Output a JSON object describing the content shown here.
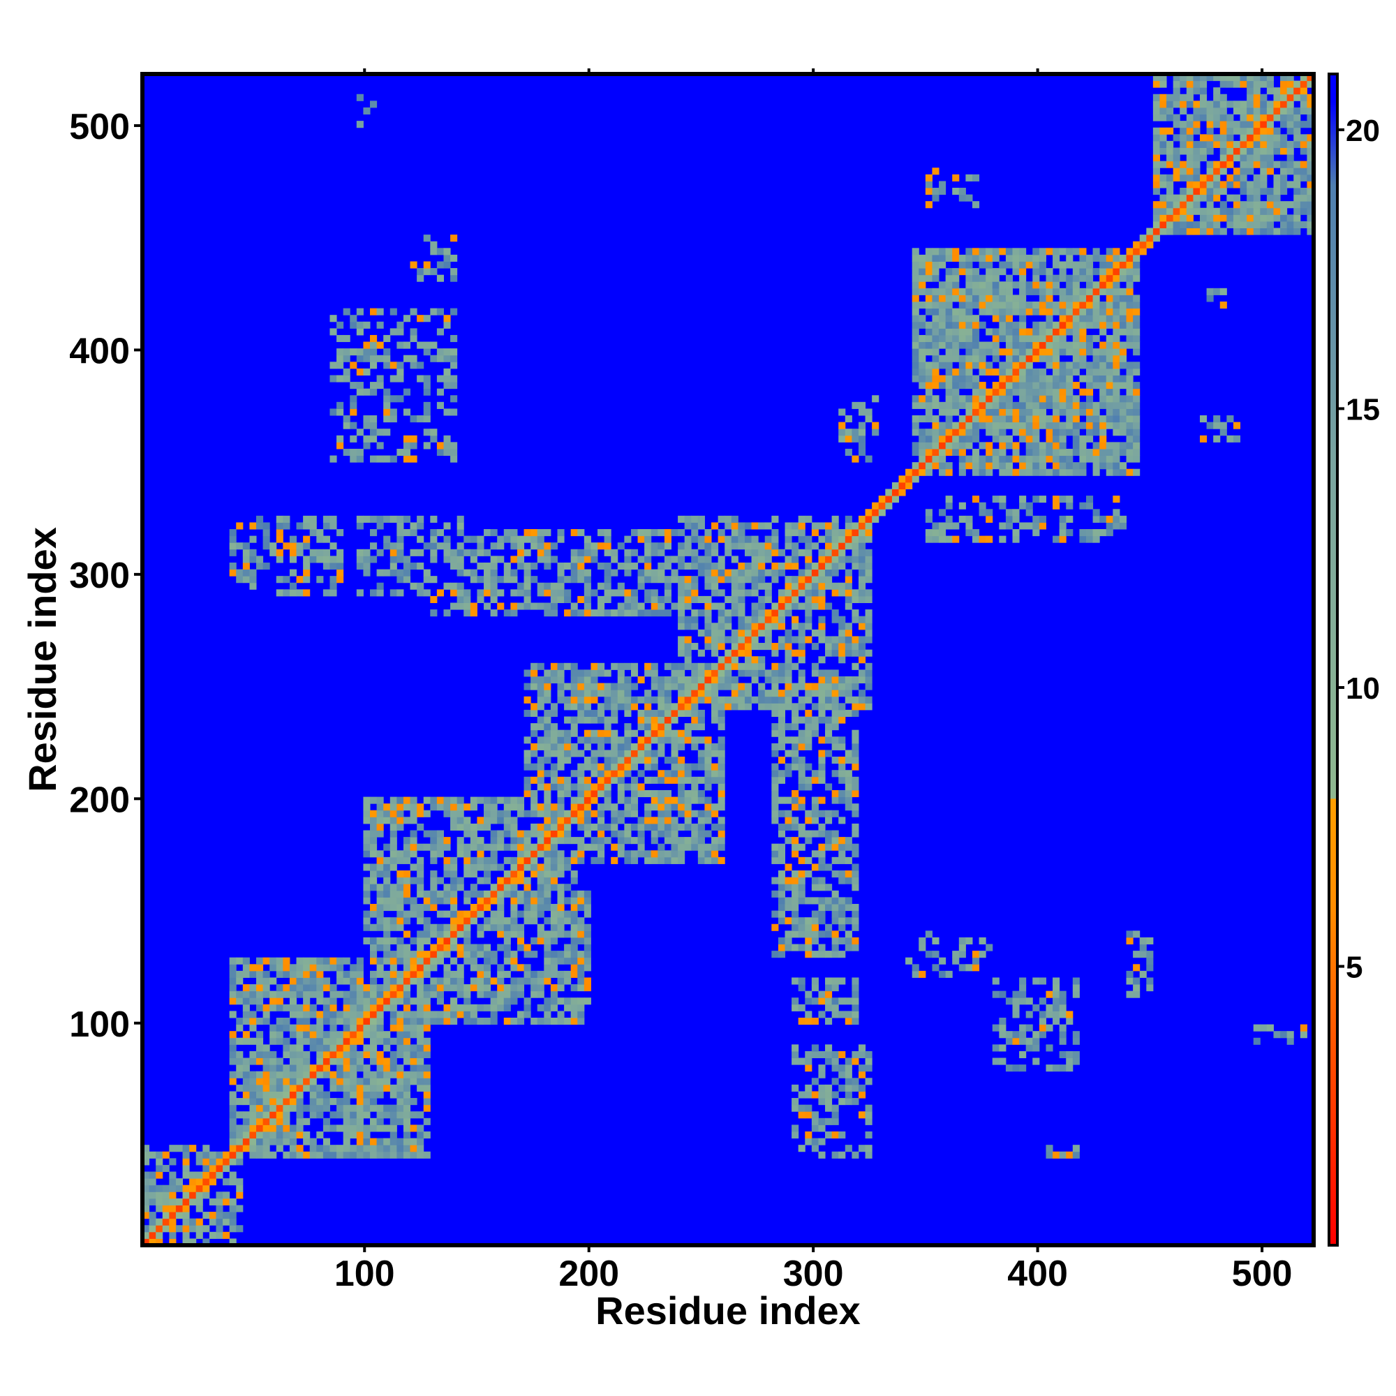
{
  "chart_data": {
    "type": "heatmap",
    "title": "",
    "xlabel": "Residue index",
    "ylabel": "Residue index",
    "xlim": [
      1,
      523
    ],
    "ylim": [
      1,
      523
    ],
    "x_ticks": [
      {
        "value": 100,
        "label": "100"
      },
      {
        "value": 200,
        "label": "200"
      },
      {
        "value": 300,
        "label": "300"
      },
      {
        "value": 400,
        "label": "400"
      },
      {
        "value": 500,
        "label": "500"
      }
    ],
    "y_ticks": [
      {
        "value": 100,
        "label": "100"
      },
      {
        "value": 200,
        "label": "200"
      },
      {
        "value": 300,
        "label": "300"
      },
      {
        "value": 400,
        "label": "400"
      },
      {
        "value": 500,
        "label": "500"
      }
    ],
    "colorbar": {
      "range": [
        0,
        21
      ],
      "ticks": [
        {
          "value": 5,
          "label": "5"
        },
        {
          "value": 10,
          "label": "10"
        },
        {
          "value": 15,
          "label": "15"
        },
        {
          "value": 20,
          "label": "20"
        }
      ],
      "stops": [
        {
          "value": 0,
          "color": "#ff0000"
        },
        {
          "value": 6,
          "color": "#ff8c00"
        },
        {
          "value": 8,
          "color": "#ff9f00"
        },
        {
          "value": 8.01,
          "color": "#8fb88f"
        },
        {
          "value": 14,
          "color": "#7aa5a0"
        },
        {
          "value": 19,
          "color": "#4f7fb0"
        },
        {
          "value": 20.5,
          "color": "#0000ff"
        }
      ]
    },
    "background_color": "#0000ff",
    "description_of_values": "Pairwise residue distance map; low distances red/orange, medium green-grey, large blue",
    "diagonal": {
      "from": 1,
      "to": 523,
      "value": 3
    },
    "contact_blocks": [
      {
        "x": [
          1,
          45
        ],
        "y": [
          1,
          45
        ],
        "intensity": 0.6
      },
      {
        "x": [
          40,
          130
        ],
        "y": [
          40,
          130
        ],
        "intensity": 0.8
      },
      {
        "x": [
          100,
          200
        ],
        "y": [
          100,
          200
        ],
        "intensity": 0.7
      },
      {
        "x": [
          170,
          260
        ],
        "y": [
          170,
          260
        ],
        "intensity": 0.7
      },
      {
        "x": [
          240,
          325
        ],
        "y": [
          240,
          325
        ],
        "intensity": 0.7
      },
      {
        "x": [
          345,
          445
        ],
        "y": [
          345,
          445
        ],
        "intensity": 0.85
      },
      {
        "x": [
          450,
          523
        ],
        "y": [
          450,
          523
        ],
        "intensity": 0.8
      },
      {
        "x": [
          60,
          120
        ],
        "y": [
          40,
          75
        ],
        "intensity": 0.5
      },
      {
        "x": [
          40,
          75
        ],
        "y": [
          60,
          120
        ],
        "intensity": 0.5
      },
      {
        "x": [
          280,
          320
        ],
        "y": [
          130,
          240
        ],
        "intensity": 0.6
      },
      {
        "x": [
          130,
          240
        ],
        "y": [
          280,
          320
        ],
        "intensity": 0.6
      },
      {
        "x": [
          40,
          90
        ],
        "y": [
          290,
          325
        ],
        "intensity": 0.5
      },
      {
        "x": [
          290,
          325
        ],
        "y": [
          40,
          90
        ],
        "intensity": 0.5
      },
      {
        "x": [
          95,
          145
        ],
        "y": [
          290,
          325
        ],
        "intensity": 0.5
      },
      {
        "x": [
          165,
          240
        ],
        "y": [
          285,
          320
        ],
        "intensity": 0.6
      },
      {
        "x": [
          290,
          320
        ],
        "y": [
          100,
          120
        ],
        "intensity": 0.5
      },
      {
        "x": [
          380,
          420
        ],
        "y": [
          80,
          120
        ],
        "intensity": 0.5
      },
      {
        "x": [
          440,
          450
        ],
        "y": [
          110,
          140
        ],
        "intensity": 0.5
      },
      {
        "x": [
          495,
          520
        ],
        "y": [
          90,
          100
        ],
        "intensity": 0.5
      },
      {
        "x": [
          85,
          140
        ],
        "y": [
          350,
          420
        ],
        "intensity": 0.45
      },
      {
        "x": [
          120,
          140
        ],
        "y": [
          430,
          450
        ],
        "intensity": 0.4
      },
      {
        "x": [
          95,
          105
        ],
        "y": [
          500,
          515
        ],
        "intensity": 0.4
      },
      {
        "x": [
          350,
          375
        ],
        "y": [
          460,
          480
        ],
        "intensity": 0.4
      },
      {
        "x": [
          470,
          490
        ],
        "y": [
          360,
          370
        ],
        "intensity": 0.4
      },
      {
        "x": [
          340,
          380
        ],
        "y": [
          120,
          140
        ],
        "intensity": 0.4
      },
      {
        "x": [
          310,
          330
        ],
        "y": [
          350,
          380
        ],
        "intensity": 0.45
      },
      {
        "x": [
          350,
          360
        ],
        "y": [
          315,
          330
        ],
        "intensity": 0.45
      },
      {
        "x": [
          360,
          440
        ],
        "y": [
          315,
          335
        ],
        "intensity": 0.4
      },
      {
        "x": [
          475,
          485
        ],
        "y": [
          420,
          430
        ],
        "intensity": 0.4
      },
      {
        "x": [
          405,
          420
        ],
        "y": [
          40,
          50
        ],
        "intensity": 0.35
      }
    ]
  }
}
